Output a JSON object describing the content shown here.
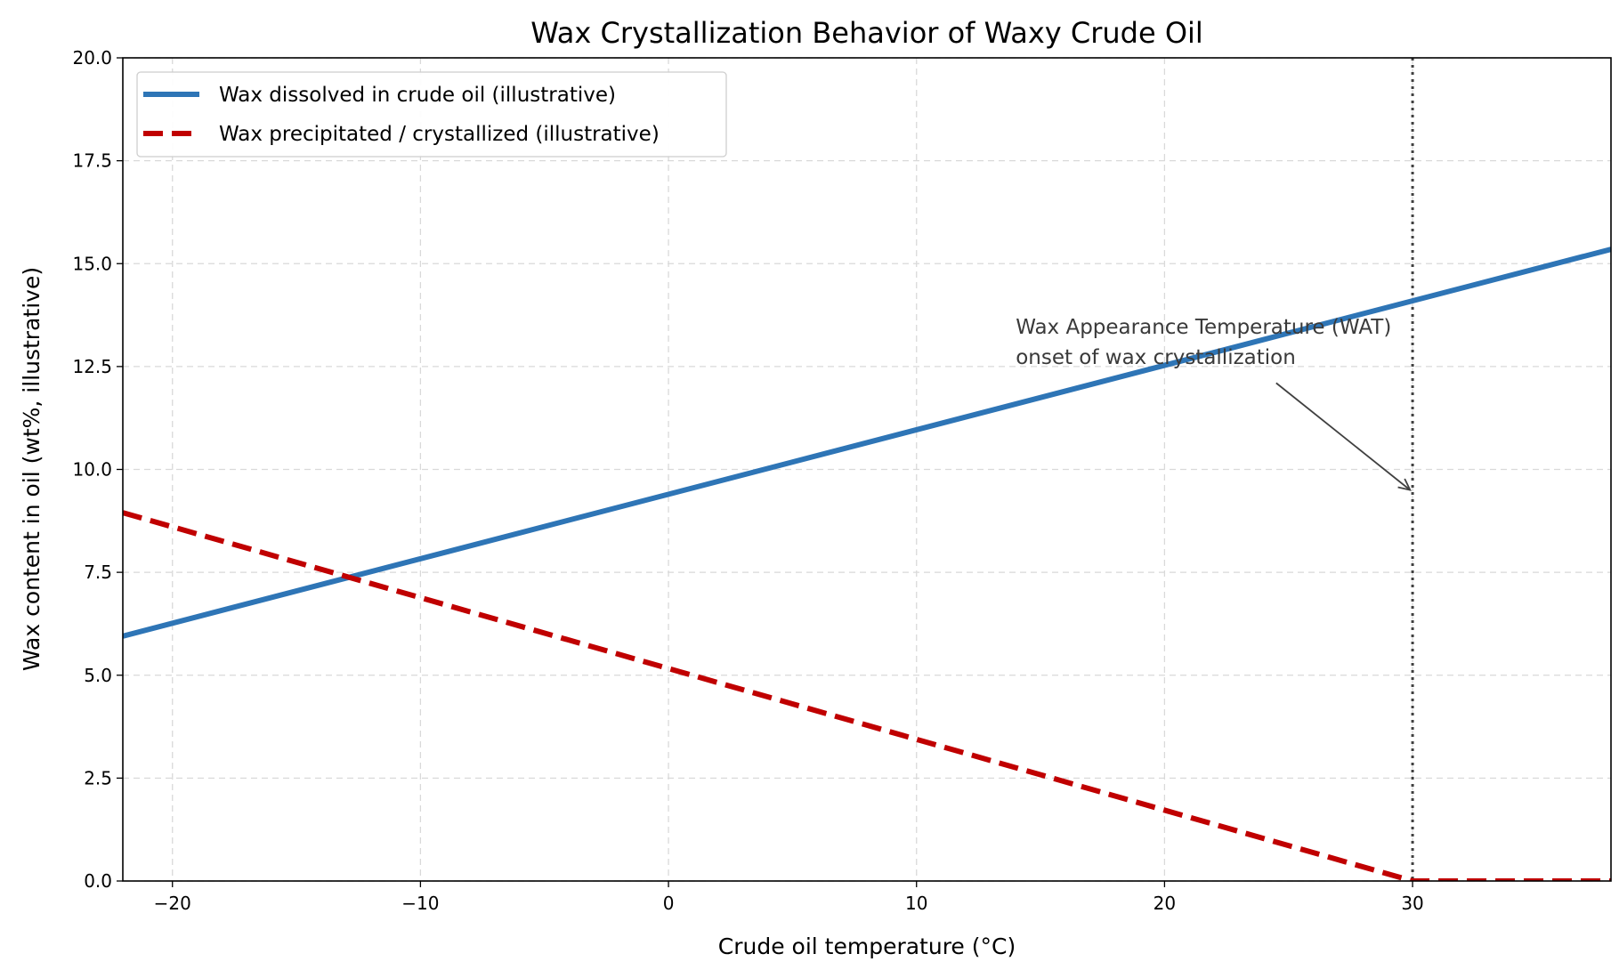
{
  "chart_data": {
    "type": "line",
    "title": "Wax Crystallization Behavior of Waxy Crude Oil",
    "xlabel": "Crude oil temperature (°C)",
    "ylabel": "Wax content in oil (wt%, illustrative)",
    "xlim": [
      -22,
      38
    ],
    "ylim": [
      0,
      20
    ],
    "xticks": [
      -20,
      -10,
      0,
      10,
      20,
      30
    ],
    "xtick_labels": [
      "−20",
      "−10",
      "0",
      "10",
      "20",
      "30"
    ],
    "yticks": [
      0,
      2.5,
      5,
      7.5,
      10,
      12.5,
      15,
      17.5,
      20
    ],
    "ytick_labels": [
      "0.0",
      "2.5",
      "5.0",
      "7.5",
      "10.0",
      "12.5",
      "15.0",
      "17.5",
      "20.0"
    ],
    "grid": true,
    "legend_position": "top-left",
    "series": [
      {
        "name": "Wax dissolved in crude oil (illustrative)",
        "color": "#2e75b6",
        "style": "solid",
        "x": [
          -22,
          38
        ],
        "y": [
          5.95,
          15.35
        ]
      },
      {
        "name": "Wax precipitated / crystallized (illustrative)",
        "color": "#c00000",
        "style": "dashed",
        "x": [
          -22,
          30,
          38
        ],
        "y": [
          8.95,
          0,
          0
        ]
      }
    ],
    "reference_lines": [
      {
        "orientation": "vertical",
        "x": 30,
        "color": "#404040",
        "style": "dotted"
      }
    ],
    "annotations": [
      {
        "lines": [
          "Wax Appearance Temperature (WAT)",
          "onset of wax crystallization"
        ],
        "text_at": [
          14,
          13.3
        ],
        "arrow_from": [
          24.5,
          12.1
        ],
        "arrow_to": [
          29.9,
          9.5
        ],
        "color": "#404040"
      }
    ]
  }
}
